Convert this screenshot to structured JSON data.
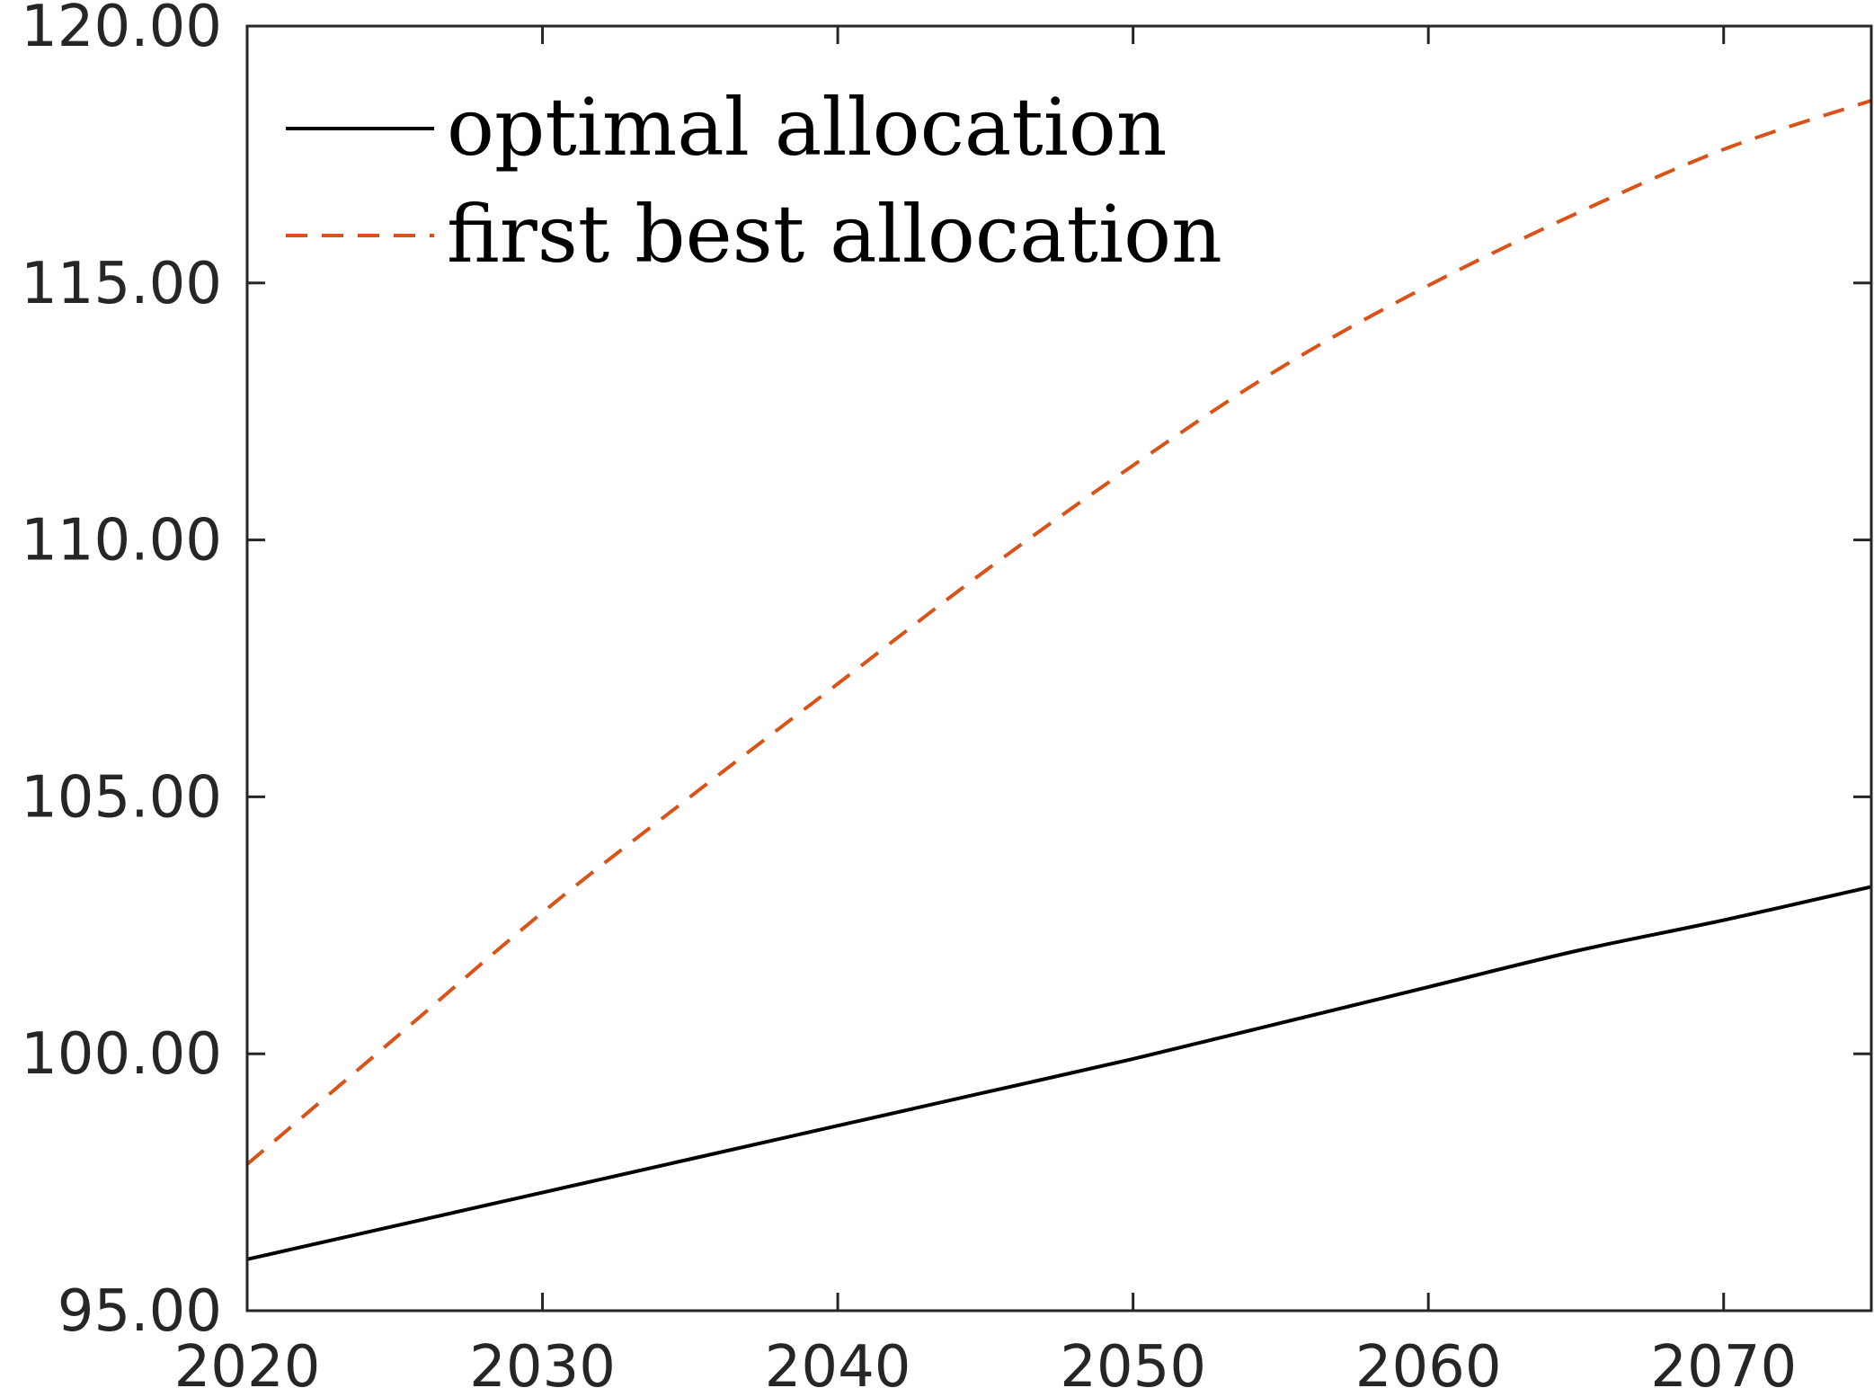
{
  "chart_data": {
    "type": "line",
    "title": "",
    "xlabel": "",
    "ylabel": "",
    "xlim": [
      2020,
      2075
    ],
    "ylim": [
      95,
      120
    ],
    "x_ticks": [
      2020,
      2030,
      2040,
      2050,
      2060,
      2070
    ],
    "x_tick_labels": [
      "2020",
      "2030",
      "2040",
      "2050",
      "2060",
      "2070"
    ],
    "y_ticks": [
      95,
      100,
      105,
      110,
      115,
      120
    ],
    "y_tick_labels": [
      "95.00",
      "100.00",
      "105.00",
      "110.00",
      "115.00",
      "120.00"
    ],
    "grid": false,
    "legend_position": "top-left",
    "series": [
      {
        "name": "optimal allocation",
        "color": "#000000",
        "line_style": "solid",
        "x": [
          2020,
          2025,
          2030,
          2035,
          2040,
          2045,
          2050,
          2055,
          2060,
          2065,
          2070,
          2075
        ],
        "y": [
          96.0,
          96.65,
          97.3,
          97.95,
          98.6,
          99.25,
          99.9,
          100.6,
          101.3,
          102.0,
          102.6,
          103.25
        ]
      },
      {
        "name": "first best allocation",
        "color": "#D95319",
        "line_style": "dashed",
        "x": [
          2020,
          2025,
          2030,
          2035,
          2040,
          2045,
          2050,
          2055,
          2060,
          2065,
          2070,
          2075
        ],
        "y": [
          97.85,
          100.3,
          102.75,
          105.0,
          107.2,
          109.4,
          111.45,
          113.35,
          114.95,
          116.35,
          117.6,
          118.55
        ]
      }
    ]
  }
}
